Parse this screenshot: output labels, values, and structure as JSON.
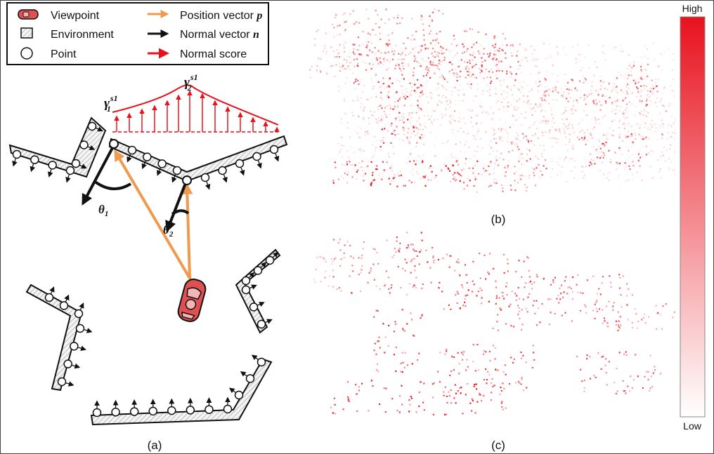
{
  "legend": {
    "viewpoint": "Viewpoint",
    "environment": "Environment",
    "point": "Point",
    "position_vector": "Position vector",
    "position_symbol": "p",
    "normal_vector": "Normal vector",
    "normal_symbol": "n",
    "normal_score": "Normal score"
  },
  "diagram": {
    "gamma1_base": "γ",
    "gamma1_sub": "1",
    "gamma1_sup": "s1",
    "gamma2_base": "γ",
    "gamma2_sub": "2",
    "gamma2_sup": "s1",
    "theta1_base": "θ",
    "theta1_sub": "1",
    "theta2_base": "θ",
    "theta2_sub": "2"
  },
  "captions": {
    "a": "(a)",
    "b": "(b)",
    "c": "(c)"
  },
  "colorbar": {
    "high": "High",
    "low": "Low"
  },
  "colors": {
    "red": "#e8121e",
    "orange": "#ef9a4e",
    "black": "#111111",
    "car": "#e05050"
  }
}
